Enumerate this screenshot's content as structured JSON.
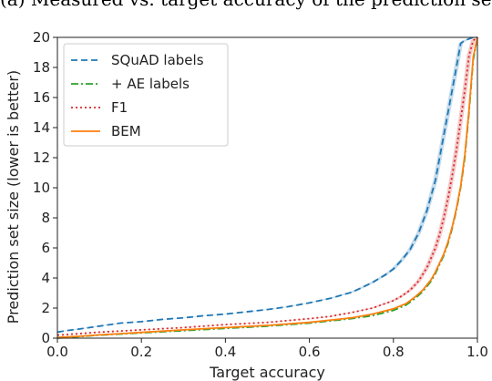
{
  "caption": "(a) Measured vs. target accuracy of the prediction sets.",
  "chart_data": {
    "type": "line",
    "xlabel": "Target accuracy",
    "ylabel": "Prediction set size (lower is better)",
    "xlim": [
      0.0,
      1.0
    ],
    "ylim": [
      0,
      20
    ],
    "xticks": [
      "0.0",
      "0.2",
      "0.4",
      "0.6",
      "0.8",
      "1.0"
    ],
    "yticks": [
      "0",
      "2",
      "4",
      "6",
      "8",
      "10",
      "12",
      "14",
      "16",
      "18",
      "20"
    ],
    "legend_position": "upper-left",
    "grid": false,
    "series": [
      {
        "name": "SQuAD labels",
        "color": "#1f77b4",
        "style": "dashed",
        "band": true,
        "x": [
          0.0,
          0.02,
          0.05,
          0.1,
          0.15,
          0.2,
          0.25,
          0.3,
          0.35,
          0.4,
          0.45,
          0.5,
          0.55,
          0.6,
          0.65,
          0.7,
          0.72,
          0.75,
          0.78,
          0.8,
          0.82,
          0.84,
          0.86,
          0.88,
          0.9,
          0.91,
          0.92,
          0.93,
          0.94,
          0.95,
          0.96,
          0.97,
          0.98,
          0.99,
          1.0
        ],
        "y": [
          0.4,
          0.5,
          0.6,
          0.8,
          1.0,
          1.1,
          1.25,
          1.35,
          1.5,
          1.6,
          1.75,
          1.9,
          2.1,
          2.35,
          2.65,
          3.05,
          3.3,
          3.7,
          4.2,
          4.6,
          5.2,
          5.9,
          7.0,
          8.5,
          10.5,
          12.0,
          13.5,
          15.0,
          16.5,
          18.0,
          19.6,
          19.8,
          19.9,
          20.0,
          20.0
        ]
      },
      {
        "name": "+ AE labels",
        "color": "#2ca02c",
        "style": "dashdot",
        "band": false,
        "x": [
          0.0,
          0.05,
          0.1,
          0.2,
          0.3,
          0.4,
          0.5,
          0.6,
          0.7,
          0.75,
          0.8,
          0.83,
          0.85,
          0.87,
          0.89,
          0.9,
          0.92,
          0.93,
          0.94,
          0.95,
          0.96,
          0.97,
          0.98,
          0.99,
          1.0
        ],
        "y": [
          0.0,
          0.1,
          0.2,
          0.35,
          0.5,
          0.65,
          0.8,
          1.0,
          1.3,
          1.5,
          1.85,
          2.2,
          2.6,
          3.1,
          3.8,
          4.3,
          5.5,
          6.3,
          7.3,
          8.5,
          10.0,
          12.0,
          15.0,
          18.5,
          20.0
        ]
      },
      {
        "name": "F1",
        "color": "#d62728",
        "style": "dotted",
        "band": true,
        "x": [
          0.0,
          0.05,
          0.1,
          0.2,
          0.3,
          0.4,
          0.5,
          0.6,
          0.65,
          0.7,
          0.75,
          0.8,
          0.82,
          0.84,
          0.86,
          0.88,
          0.9,
          0.91,
          0.92,
          0.93,
          0.94,
          0.95,
          0.96,
          0.97,
          0.98,
          0.99,
          1.0
        ],
        "y": [
          0.2,
          0.3,
          0.4,
          0.55,
          0.7,
          0.9,
          1.05,
          1.3,
          1.45,
          1.7,
          2.0,
          2.5,
          2.8,
          3.2,
          3.8,
          4.7,
          6.0,
          6.9,
          8.0,
          9.3,
          10.8,
          12.5,
          14.5,
          16.5,
          18.8,
          19.8,
          20.0
        ]
      },
      {
        "name": "BEM",
        "color": "#ff7f0e",
        "style": "solid",
        "band": false,
        "x": [
          0.0,
          0.05,
          0.1,
          0.2,
          0.3,
          0.4,
          0.5,
          0.6,
          0.7,
          0.75,
          0.8,
          0.83,
          0.85,
          0.87,
          0.89,
          0.9,
          0.92,
          0.93,
          0.94,
          0.95,
          0.96,
          0.97,
          0.98,
          0.99,
          1.0
        ],
        "y": [
          0.05,
          0.12,
          0.22,
          0.38,
          0.55,
          0.7,
          0.85,
          1.05,
          1.35,
          1.6,
          1.95,
          2.3,
          2.7,
          3.2,
          3.9,
          4.4,
          5.6,
          6.4,
          7.4,
          8.6,
          10.1,
          12.2,
          15.2,
          18.7,
          20.0
        ]
      }
    ]
  }
}
